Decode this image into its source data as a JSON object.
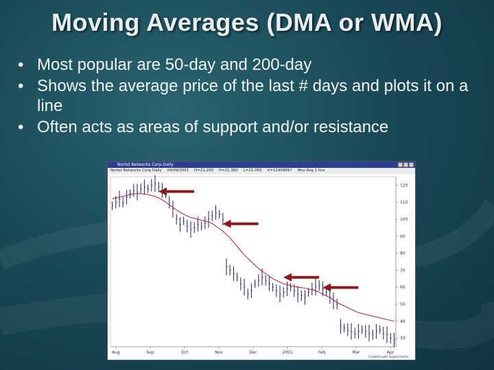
{
  "slide": {
    "title": "Moving Averages (DMA or WMA)",
    "bullet_char": "•",
    "bullets": [
      "Most popular are 50-day and 200-day",
      "Shows the average price of the last # days and plots it on a line",
      "Often acts as areas of support and/or resistance"
    ]
  },
  "chart": {
    "window_title": "Nortel Networks Corp-Daily",
    "header": {
      "symbol": "Nortel Networks Corp Daily",
      "date": "04/09/2001",
      "open": "O=21.200",
      "high": "H=21.360",
      "low": "L=21.060",
      "volume": "V=12408897",
      "ma_label": "Mov Avg 1 line"
    },
    "x_labels": [
      "Aug",
      "Sep",
      "Oct",
      "Nov",
      "Dec",
      "2001",
      "Feb",
      "Mar",
      "Apr"
    ],
    "y_labels": [
      "120",
      "110",
      "100",
      "90",
      "80",
      "70",
      "60",
      "50",
      "40",
      "30"
    ],
    "credit": "Created with SuperCharts"
  },
  "chart_data": {
    "type": "line",
    "ylim": [
      25,
      125
    ],
    "price_series": [
      108,
      110,
      112,
      110,
      113,
      115,
      117,
      116,
      118,
      119,
      118,
      120,
      121,
      119,
      117,
      115,
      110,
      106,
      100,
      97,
      99,
      96,
      94,
      95,
      97,
      96,
      98,
      100,
      102,
      104,
      103,
      100,
      72,
      70,
      68,
      66,
      62,
      60,
      56,
      58,
      62,
      64,
      66,
      64,
      62,
      60,
      58,
      56,
      57,
      59,
      60,
      58,
      56,
      55,
      54,
      57,
      59,
      60,
      61,
      59,
      57,
      54,
      52,
      50,
      37,
      36,
      35,
      34,
      33,
      34,
      35,
      34,
      33,
      32,
      34,
      35,
      33,
      32,
      30,
      29
    ],
    "moving_average": [
      112,
      112.6,
      113,
      113.5,
      114,
      114.5,
      115,
      115,
      115,
      114.8,
      114.5,
      114,
      113.5,
      112.5,
      111.5,
      110,
      108.5,
      107,
      105.5,
      104,
      103,
      102,
      101,
      100.5,
      100,
      99.5,
      99,
      98.5,
      97.5,
      96,
      94.5,
      93,
      91,
      89,
      86.5,
      84,
      81.5,
      79,
      77,
      75,
      73,
      71,
      69.5,
      68,
      66.5,
      65,
      64,
      63,
      62,
      61.5,
      61,
      60.5,
      60,
      59.8,
      59.5,
      59,
      58.5,
      58,
      57,
      56,
      55,
      54,
      52.5,
      51,
      50,
      49,
      48,
      47,
      46,
      45,
      44.5,
      44,
      43.5,
      43,
      42.5,
      42,
      41.5,
      41,
      40.5,
      40
    ],
    "annotations": [
      "support-resistance-arrow",
      "support-resistance-arrow",
      "support-resistance-arrow",
      "support-resistance-arrow"
    ],
    "colors": {
      "price": "#1a1a6e",
      "moving_average": "#b22222",
      "arrow": "#8b1a1a"
    }
  }
}
